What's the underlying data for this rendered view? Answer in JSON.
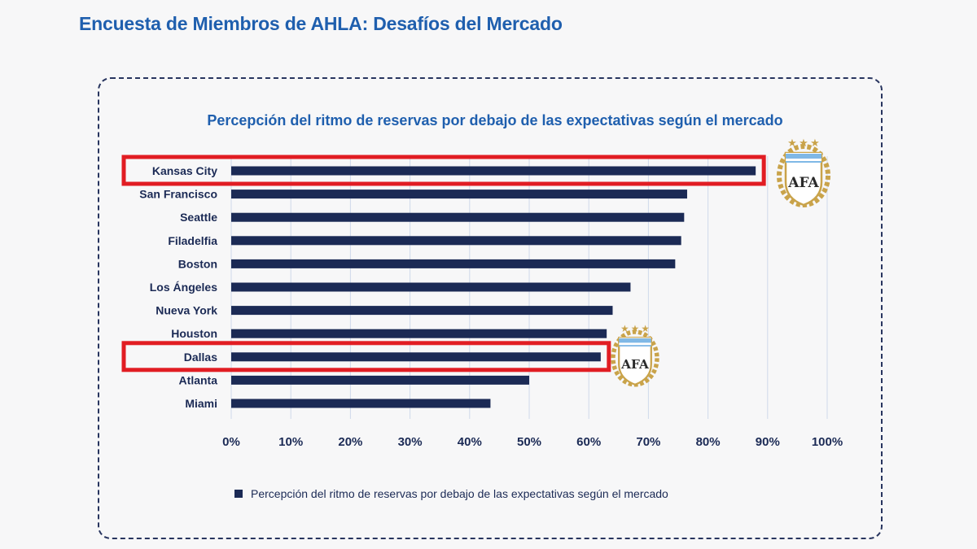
{
  "header": {
    "title": "Encuesta de Miembros de AHLA: Desafíos del Mercado"
  },
  "colors": {
    "title": "#1f5fae",
    "bar": "#1b2a55",
    "highlight": "#e11d23",
    "gridline": "#cfd9ea",
    "badge_gold": "#c9a34a",
    "badge_blue": "#7fb8e6"
  },
  "badges": [
    {
      "icon": "afa-crest-icon",
      "text": "AFA"
    },
    {
      "icon": "afa-crest-icon",
      "text": "AFA"
    }
  ],
  "chart_data": {
    "type": "bar",
    "orientation": "horizontal",
    "title": "Percepción del ritmo de reservas por debajo de las expectativas según el mercado",
    "categories": [
      "Kansas City",
      "San Francisco",
      "Seattle",
      "Filadelfia",
      "Boston",
      "Los Ángeles",
      "Nueva York",
      "Houston",
      "Dallas",
      "Atlanta",
      "Miami"
    ],
    "series": [
      {
        "name": "Percepción del ritmo de reservas por debajo de las expectativas según el mercado",
        "values": [
          88,
          76.5,
          76,
          75.5,
          74.5,
          67,
          64,
          63,
          62,
          50,
          43.5
        ]
      }
    ],
    "xlim": [
      0,
      100
    ],
    "x_ticks": [
      "0%",
      "10%",
      "20%",
      "30%",
      "40%",
      "50%",
      "60%",
      "70%",
      "80%",
      "90%",
      "100%"
    ],
    "grid": true,
    "legend": "bottom",
    "highlighted_categories": [
      "Kansas City",
      "Dallas"
    ]
  }
}
